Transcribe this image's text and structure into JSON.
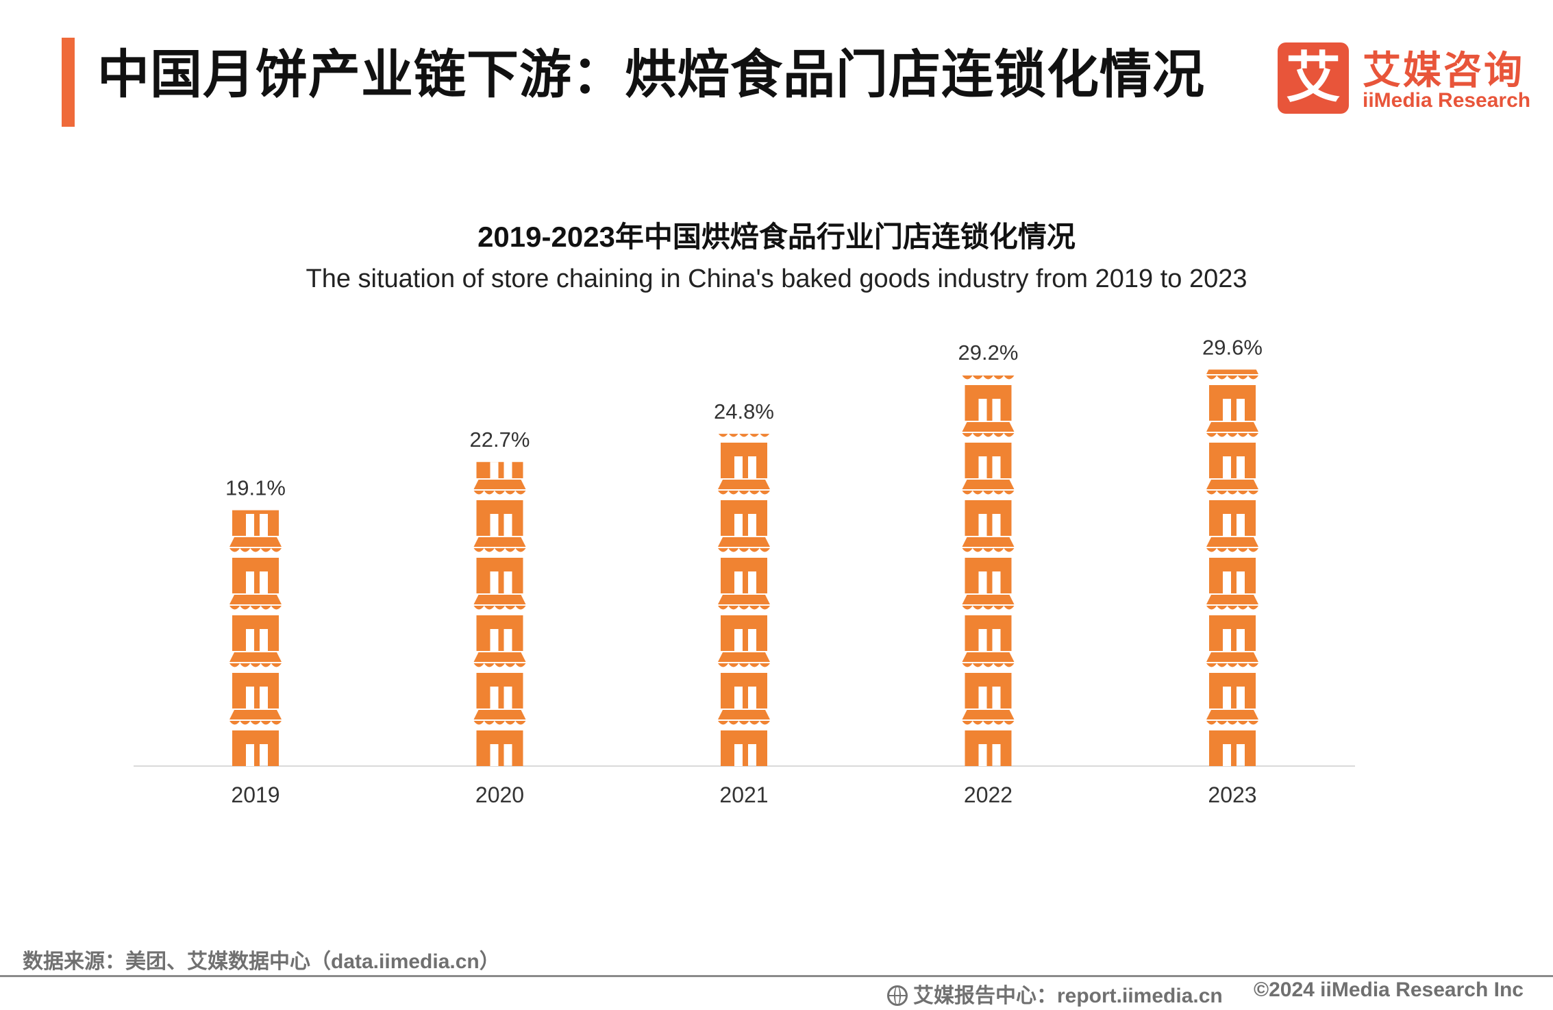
{
  "header": {
    "title": "中国月饼产业链下游：烘焙食品门店连锁化情况"
  },
  "logo": {
    "mark": "艾",
    "name_cn": "艾媒咨询",
    "name_en": "iiMedia Research"
  },
  "colors": {
    "accent": "#ef6a3a",
    "bar": "#f08332",
    "logo": "#e8553a",
    "footer_text": "#707070"
  },
  "chart_data": {
    "type": "bar",
    "title": "2019-2023年中国烘焙食品行业门店连锁化情况",
    "subtitle": "The situation of store chaining in China's baked goods industry from 2019 to 2023",
    "categories": [
      "2019",
      "2020",
      "2021",
      "2022",
      "2023"
    ],
    "values": [
      19.1,
      22.7,
      24.8,
      29.2,
      29.6
    ],
    "data_labels": [
      "19.1%",
      "22.7%",
      "24.8%",
      "29.2%",
      "29.6%"
    ],
    "unit": "%",
    "mark": "store-icon",
    "grid": false,
    "legend": "none"
  },
  "footer": {
    "source": "数据来源：美团、艾媒数据中心（data.iimedia.cn）",
    "report_center": "艾媒报告中心：report.iimedia.cn",
    "copyright": "©2024  iiMedia Research  Inc",
    "report_icon": "globe-icon"
  }
}
